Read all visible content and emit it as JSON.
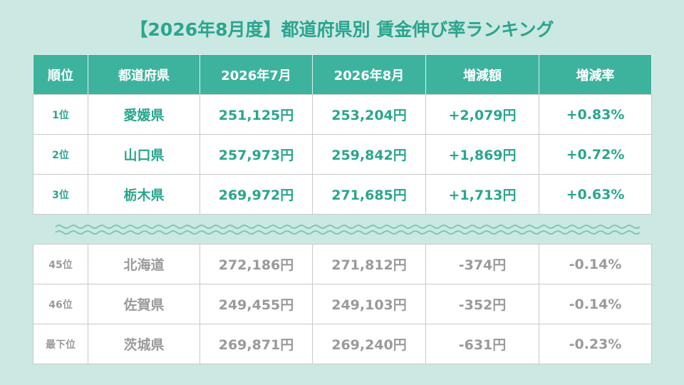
{
  "title": "【2026年8月度】都道府県別 賃金伸び率ランキング",
  "table": {
    "header": [
      "順位",
      "都道府県",
      "2026年7月",
      "2026年8月",
      "増減額",
      "増減率"
    ],
    "top_rows": [
      [
        "1位",
        "愛媛県",
        "251,125円",
        "253,204円",
        "+2,079円",
        "+0.83%"
      ],
      [
        "2位",
        "山口県",
        "257,973円",
        "259,842円",
        "+1,869円",
        "+0.72%"
      ],
      [
        "3位",
        "栃木県",
        "269,972円",
        "271,685円",
        "+1,713円",
        "+0.63%"
      ]
    ],
    "bottom_rows": [
      [
        "45位",
        "北海道",
        "272,186円",
        "271,812円",
        "-374円",
        "-0.14%"
      ],
      [
        "46位",
        "佐賀県",
        "249,455円",
        "249,103円",
        "-352円",
        "-0.14%"
      ],
      [
        "最下位",
        "茨城県",
        "269,871円",
        "269,240円",
        "-631円",
        "-0.23%"
      ]
    ]
  }
}
